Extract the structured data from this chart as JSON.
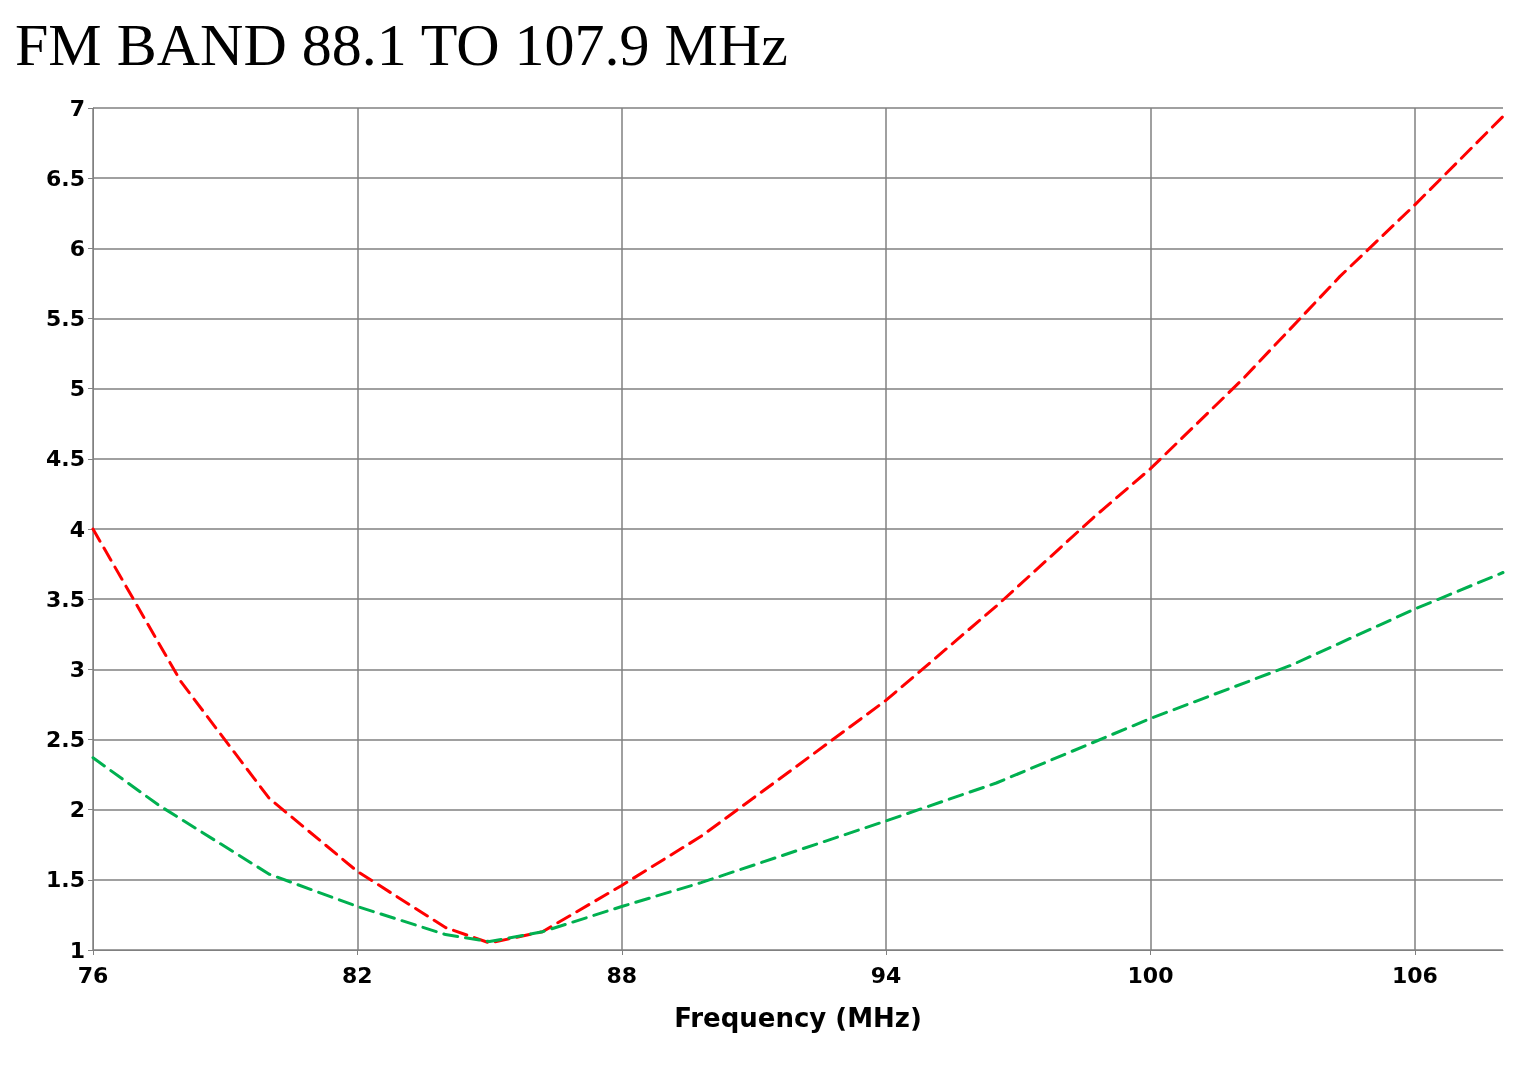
{
  "chart_data": {
    "type": "line",
    "title": "FM BAND 88.1 TO 107.9 MHz",
    "xlabel": "Frequency (MHz)",
    "xlim": [
      76,
      108
    ],
    "xticks": [
      76,
      82,
      88,
      94,
      100,
      106
    ],
    "ylim": [
      1,
      7
    ],
    "yticks": [
      1,
      1.5,
      2,
      2.5,
      3,
      3.5,
      4,
      4.5,
      5,
      5.5,
      6,
      6.5,
      7
    ],
    "grid": true,
    "marker": "none",
    "line_style": "dashed",
    "series": [
      {
        "color": "#ff0000",
        "x": [
          76,
          78,
          80,
          82,
          84,
          85,
          86.2,
          88,
          89.8,
          91.8,
          94,
          96.5,
          98.7,
          100,
          102.1,
          104.3,
          106,
          108
        ],
        "values": [
          4.0,
          2.91,
          2.08,
          1.56,
          1.16,
          1.05,
          1.13,
          1.46,
          1.81,
          2.27,
          2.78,
          3.45,
          4.08,
          4.43,
          5.07,
          5.8,
          6.31,
          6.94
        ]
      },
      {
        "color": "#00b050",
        "x": [
          76,
          77.5,
          80,
          82,
          84,
          85,
          86.2,
          88,
          89.8,
          94,
          96.5,
          100,
          103.2,
          106,
          108
        ],
        "values": [
          2.37,
          2.03,
          1.54,
          1.31,
          1.11,
          1.06,
          1.13,
          1.31,
          1.48,
          1.92,
          2.19,
          2.65,
          3.03,
          3.43,
          3.69
        ]
      }
    ]
  }
}
